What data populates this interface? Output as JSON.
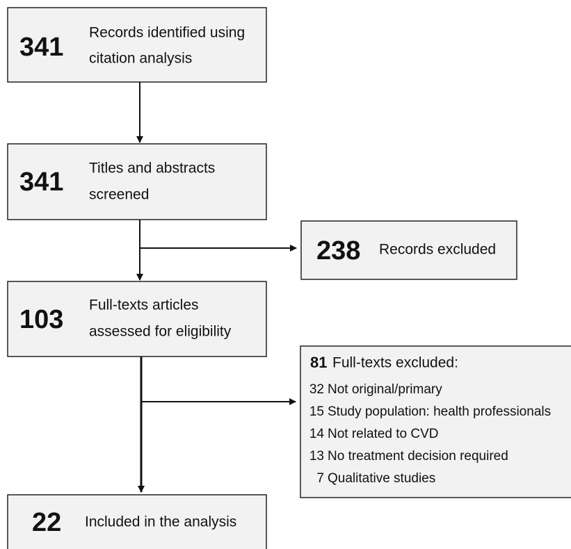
{
  "boxes": [
    {
      "number": 341,
      "label_lines": [
        "Records identified using",
        "citation analysis"
      ]
    },
    {
      "number": 341,
      "label_lines": [
        "Titles and abstracts",
        "screened"
      ]
    },
    {
      "number": 103,
      "label_lines": [
        "Full-texts articles",
        "assessed for eligibility"
      ]
    },
    {
      "number": 22,
      "label_lines": [
        "Included in the analysis"
      ]
    }
  ],
  "excluded_records": {
    "number": 238,
    "label": "Records excluded"
  },
  "excluded_fulltexts": {
    "number": 81,
    "label": "Full-texts  excluded:",
    "reasons": [
      {
        "number": 32,
        "label": "Not original/primary"
      },
      {
        "number": 15,
        "label": "Study population: health professionals"
      },
      {
        "number": 14,
        "label": "Not related to CVD"
      },
      {
        "number": 13,
        "label": "No treatment decision required"
      },
      {
        "number": 7,
        "label": "Qualitative studies"
      }
    ]
  }
}
